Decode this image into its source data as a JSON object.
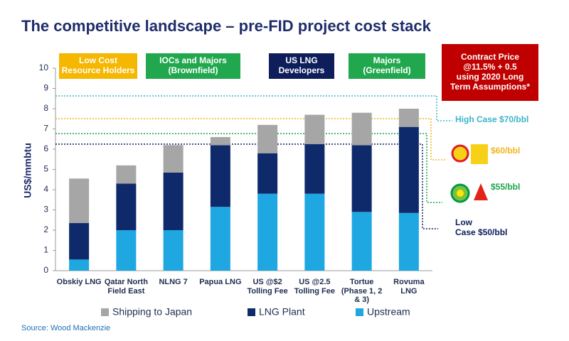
{
  "chart_data": {
    "type": "stacked_bar",
    "title": "The competitive landscape – pre-FID project cost stack",
    "y_label": "US$/mmbtu",
    "source": "Source: Wood Mackenzie",
    "categories": [
      "Obskiy LNG",
      "Qatar North\nField East",
      "NLNG 7",
      "Papua LNG",
      "US @$2\nTolling Fee",
      "US @2.5\nTolling Fee",
      "Tortue\n(Phase 1, 2\n& 3)",
      "Rovuma\nLNG"
    ],
    "series": [
      {
        "name": "Shipping to Japan",
        "color": "#a6a6a6",
        "values": [
          2.2,
          0.9,
          1.35,
          0.4,
          1.4,
          1.45,
          1.6,
          0.9
        ]
      },
      {
        "name": "LNG Plant",
        "color": "#0f2a6b",
        "values": [
          1.8,
          2.3,
          2.85,
          3.05,
          2.0,
          2.45,
          3.3,
          4.25
        ]
      },
      {
        "name": "Upstream",
        "color": "#1ea7e1",
        "values": [
          0.55,
          2.0,
          2.0,
          3.15,
          3.8,
          3.8,
          2.9,
          2.85
        ]
      }
    ],
    "ylim": [
      0,
      10
    ],
    "yticks": [
      0,
      1,
      2,
      3,
      4,
      5,
      6,
      7,
      8,
      9,
      10
    ],
    "groups": [
      {
        "label": "Low Cost\nResource Holders",
        "color": "#f5b700"
      },
      {
        "label": "IOCs and Majors\n(Brownfield)",
        "color": "#21a84e"
      },
      {
        "label": "US LNG\nDevelopers",
        "color": "#0e1e5b"
      },
      {
        "label": "Majors\n(Greenfield)",
        "color": "#21a84e"
      }
    ],
    "contract_box": {
      "label": "Contract Price\n@11.5% + 0.5\nusing 2020 Long\nTerm Assumptions*",
      "color": "#c00000"
    },
    "reference_lines": [
      {
        "value": 8.63,
        "label": "High Case $70/bbl",
        "color": "#3cb6c9"
      },
      {
        "value": 7.51,
        "label": "$60/bbl",
        "color": "#f2b51b"
      },
      {
        "value": 6.77,
        "label": "$55/bbl",
        "color": "#1aa34a"
      },
      {
        "value": 6.25,
        "label": "Low\nCase $50/bbl",
        "color": "#0b1f5c"
      }
    ]
  }
}
